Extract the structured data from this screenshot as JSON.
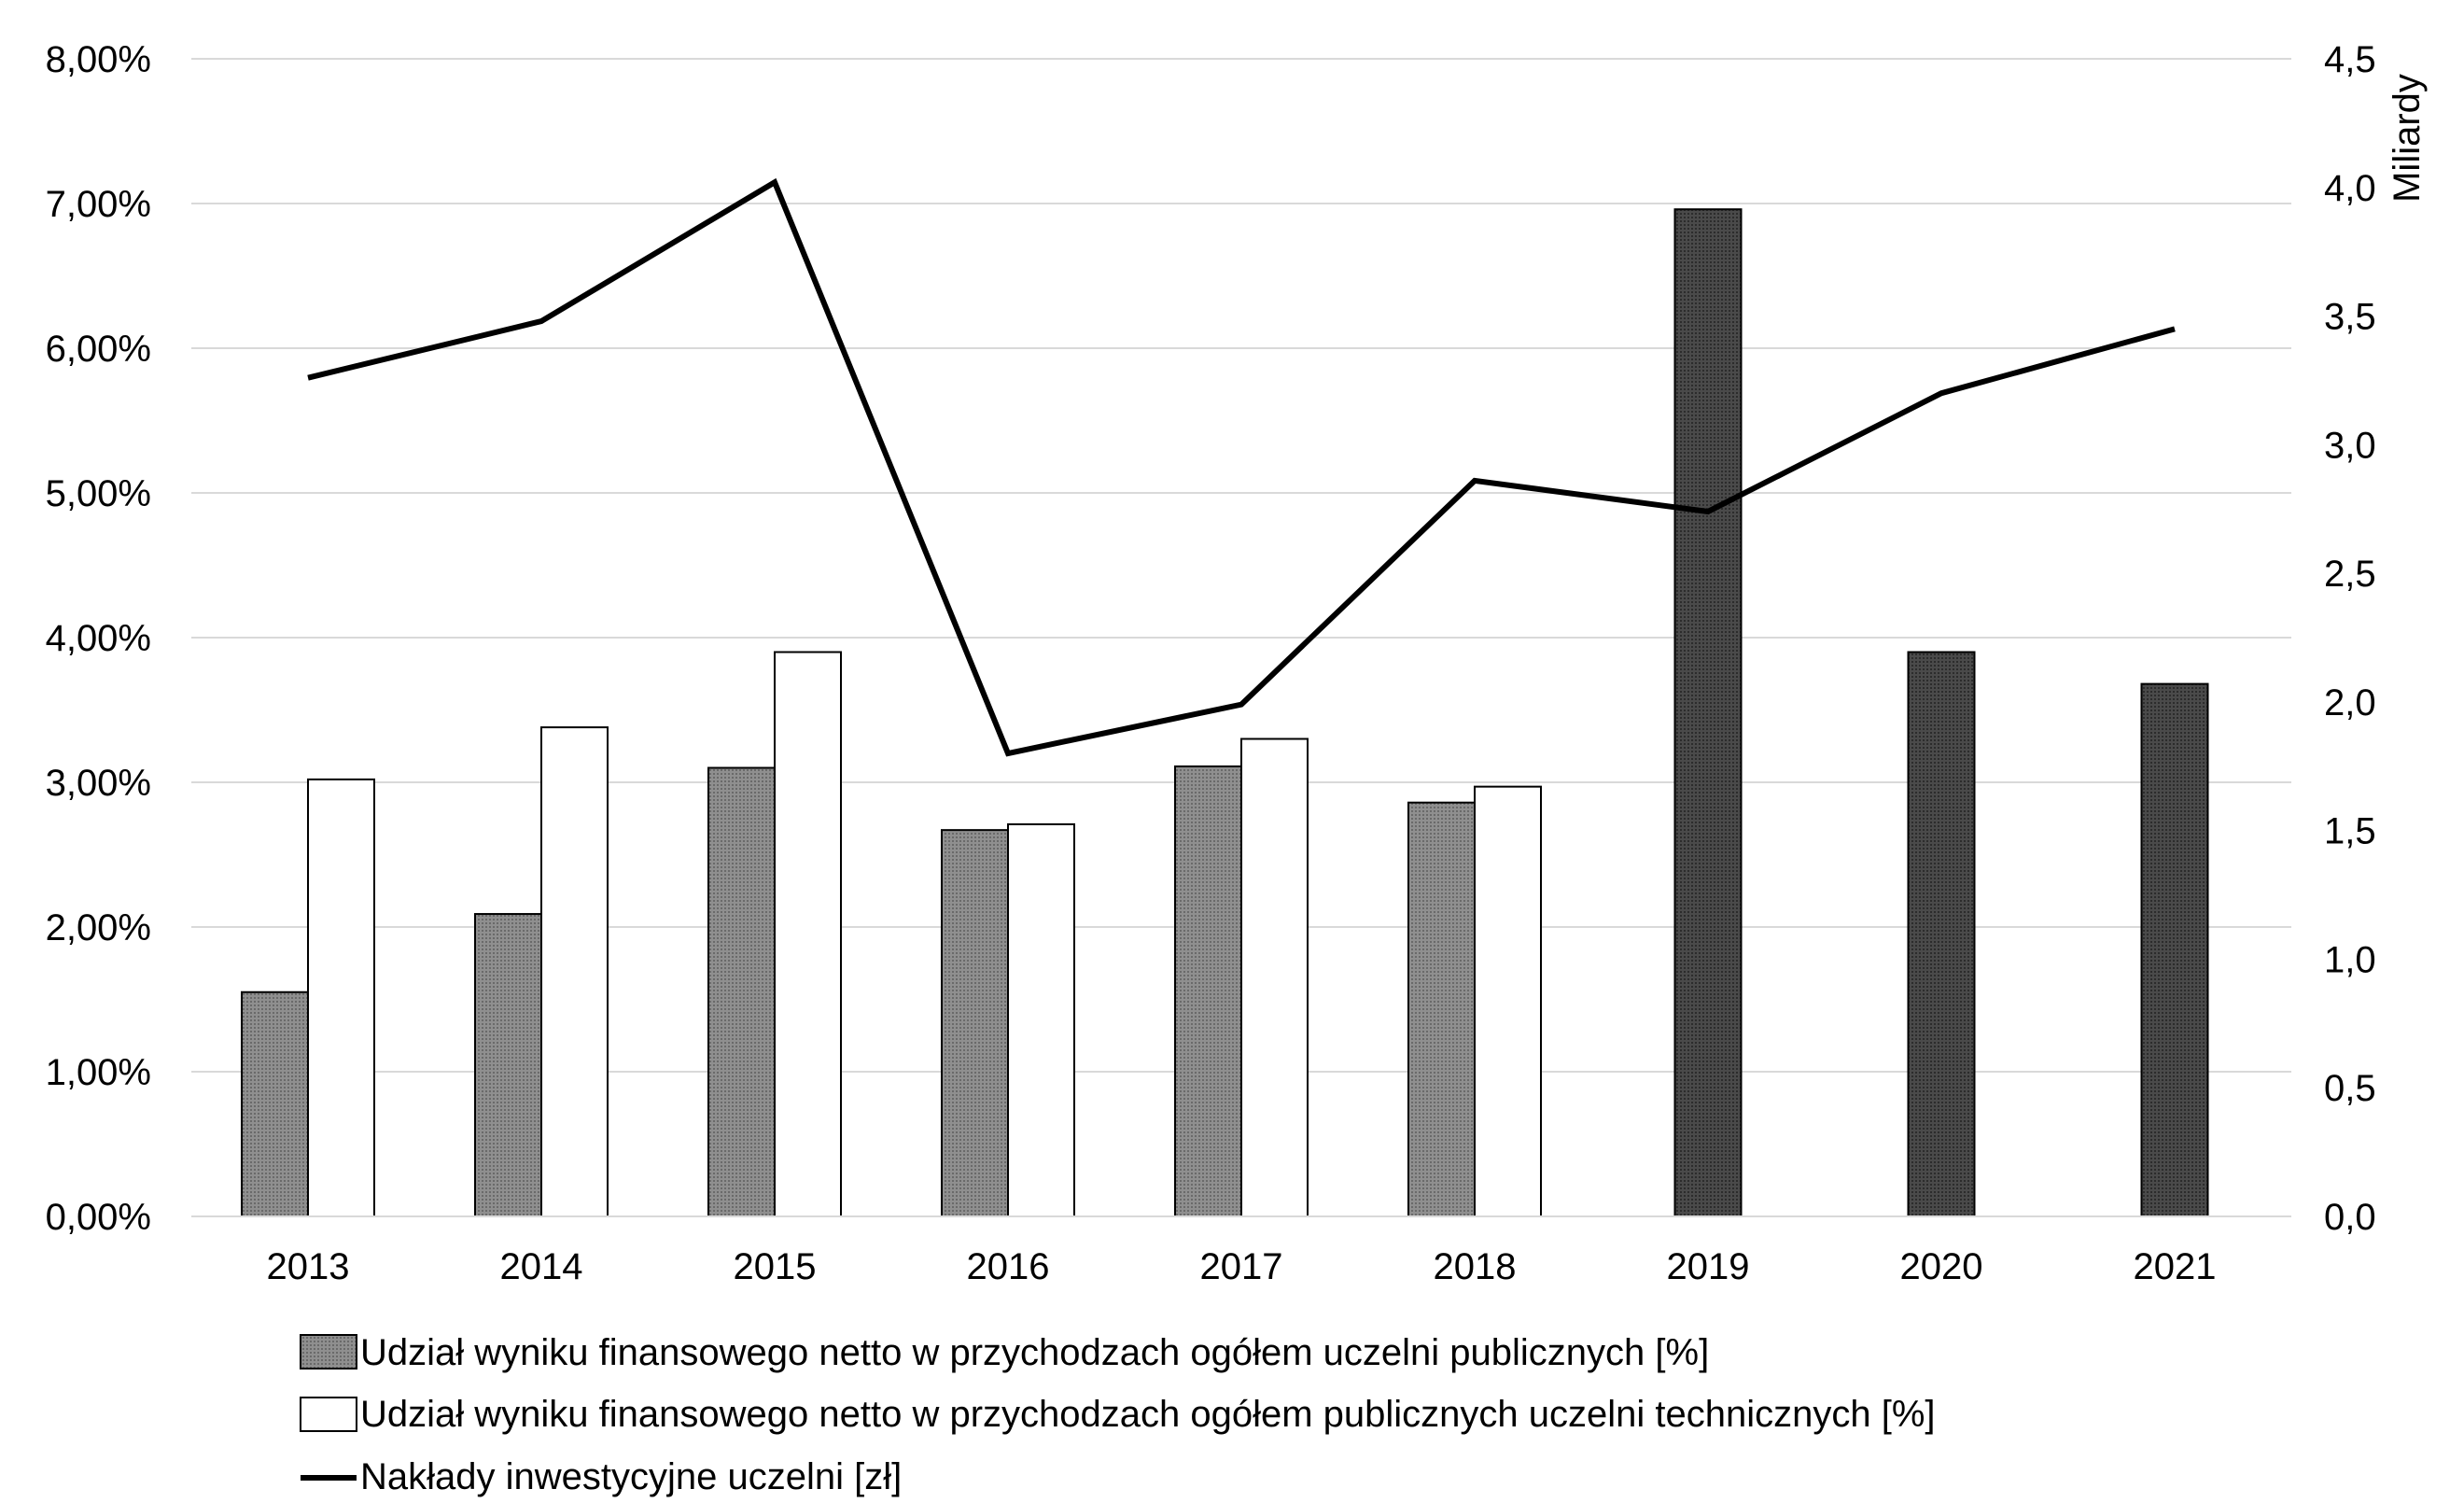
{
  "chart_data": {
    "type": "bar",
    "categories": [
      "2013",
      "2014",
      "2015",
      "2016",
      "2017",
      "2018",
      "2019",
      "2020",
      "2021"
    ],
    "series": [
      {
        "name": "Udział wyniku finansowego netto w przychodzach ogółem uczelni publicznych [%]",
        "type": "bar",
        "axis": "left",
        "color": "#8c8c8c",
        "values": [
          1.55,
          2.09,
          3.1,
          2.67,
          3.11,
          2.86,
          6.96,
          3.9,
          3.68
        ]
      },
      {
        "name": "Udział wyniku finansowego netto w przychodzach ogółem publicznych uczelni technicznych [%]",
        "type": "bar",
        "axis": "left",
        "color": "#ffffff",
        "values": [
          3.02,
          3.38,
          3.9,
          2.71,
          3.3,
          2.97,
          null,
          null,
          null
        ]
      },
      {
        "name": "Nakłady inwestycyjne uczelni [zł]",
        "type": "line",
        "axis": "right",
        "color": "#000000",
        "values": [
          3.26,
          3.48,
          4.02,
          1.8,
          1.99,
          2.86,
          2.74,
          3.2,
          3.45
        ]
      }
    ],
    "ylabel_right": "Miliardy",
    "ylim_left": [
      0,
      8
    ],
    "ylim_right": [
      0,
      4.5
    ],
    "yticks_left": [
      "0,00%",
      "1,00%",
      "2,00%",
      "3,00%",
      "4,00%",
      "5,00%",
      "6,00%",
      "7,00%",
      "8,00%"
    ],
    "yticks_right": [
      "0,0",
      "0,5",
      "1,0",
      "1,5",
      "2,0",
      "2,5",
      "3,0",
      "3,5",
      "4,0",
      "4,5"
    ],
    "grid": true,
    "legend_position": "bottom"
  }
}
